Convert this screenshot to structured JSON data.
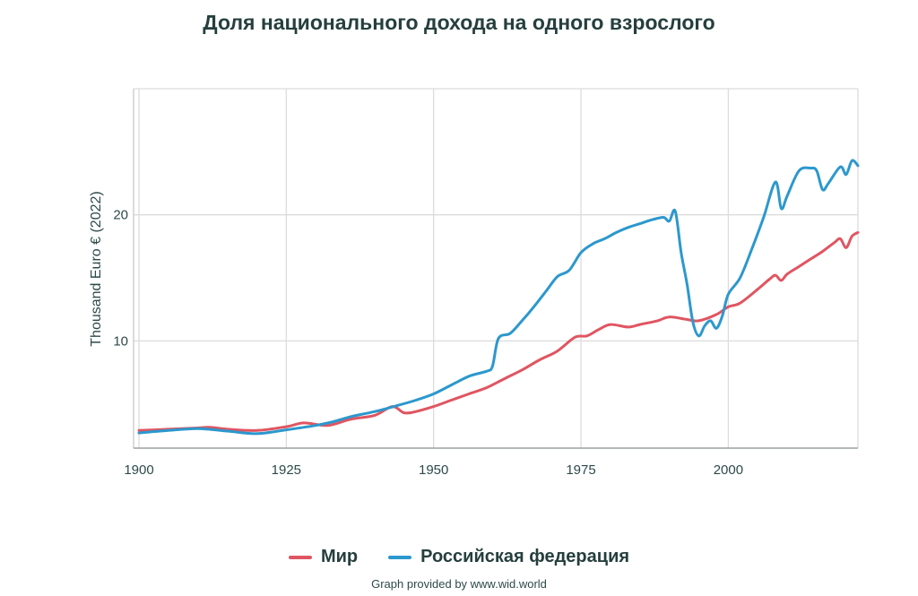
{
  "chart_data": {
    "type": "line",
    "title": "Доля национального дохода на одного взрослого",
    "ylabel": "Thousand Euro € (2022)",
    "xlabel": "",
    "xlim": [
      1900,
      2022
    ],
    "ylim": [
      1.5,
      30
    ],
    "x_ticks": [
      1900,
      1925,
      1950,
      1975,
      2000
    ],
    "y_ticks": [
      10,
      20
    ],
    "grid": true,
    "legend_placement": "bottom",
    "series": [
      {
        "name": "Мир",
        "color": "#e05561",
        "points": [
          [
            1900,
            2.9
          ],
          [
            1905,
            3.0
          ],
          [
            1910,
            3.1
          ],
          [
            1912,
            3.15
          ],
          [
            1915,
            3.0
          ],
          [
            1920,
            2.9
          ],
          [
            1925,
            3.2
          ],
          [
            1928,
            3.5
          ],
          [
            1932,
            3.3
          ],
          [
            1936,
            3.8
          ],
          [
            1940,
            4.1
          ],
          [
            1943,
            4.8
          ],
          [
            1945,
            4.3
          ],
          [
            1947,
            4.4
          ],
          [
            1950,
            4.8
          ],
          [
            1953,
            5.3
          ],
          [
            1956,
            5.8
          ],
          [
            1959,
            6.3
          ],
          [
            1962,
            7.0
          ],
          [
            1965,
            7.7
          ],
          [
            1968,
            8.5
          ],
          [
            1971,
            9.2
          ],
          [
            1974,
            10.3
          ],
          [
            1976,
            10.4
          ],
          [
            1978,
            10.9
          ],
          [
            1980,
            11.3
          ],
          [
            1983,
            11.1
          ],
          [
            1985,
            11.3
          ],
          [
            1988,
            11.6
          ],
          [
            1990,
            11.9
          ],
          [
            1993,
            11.7
          ],
          [
            1995,
            11.6
          ],
          [
            1998,
            12.1
          ],
          [
            2000,
            12.7
          ],
          [
            2002,
            13.0
          ],
          [
            2005,
            14.1
          ],
          [
            2007,
            14.9
          ],
          [
            2008,
            15.2
          ],
          [
            2009,
            14.8
          ],
          [
            2010,
            15.3
          ],
          [
            2012,
            15.9
          ],
          [
            2014,
            16.5
          ],
          [
            2016,
            17.1
          ],
          [
            2018,
            17.8
          ],
          [
            2019,
            18.1
          ],
          [
            2020,
            17.4
          ],
          [
            2021,
            18.3
          ],
          [
            2022,
            18.6
          ]
        ]
      },
      {
        "name": "Российская федерация",
        "color": "#2c98cd",
        "points": [
          [
            1900,
            2.7
          ],
          [
            1905,
            2.9
          ],
          [
            1910,
            3.05
          ],
          [
            1915,
            2.85
          ],
          [
            1920,
            2.65
          ],
          [
            1925,
            2.95
          ],
          [
            1930,
            3.3
          ],
          [
            1933,
            3.6
          ],
          [
            1936,
            4.0
          ],
          [
            1940,
            4.4
          ],
          [
            1944,
            4.9
          ],
          [
            1947,
            5.3
          ],
          [
            1950,
            5.8
          ],
          [
            1953,
            6.5
          ],
          [
            1956,
            7.2
          ],
          [
            1959,
            7.6
          ],
          [
            1960,
            8.0
          ],
          [
            1961,
            10.2
          ],
          [
            1963,
            10.6
          ],
          [
            1965,
            11.6
          ],
          [
            1967,
            12.7
          ],
          [
            1969,
            13.9
          ],
          [
            1971,
            15.1
          ],
          [
            1973,
            15.6
          ],
          [
            1975,
            17.0
          ],
          [
            1977,
            17.7
          ],
          [
            1979,
            18.1
          ],
          [
            1981,
            18.6
          ],
          [
            1983,
            19.0
          ],
          [
            1985,
            19.3
          ],
          [
            1987,
            19.6
          ],
          [
            1989,
            19.8
          ],
          [
            1990,
            19.5
          ],
          [
            1991,
            20.3
          ],
          [
            1992,
            17.0
          ],
          [
            1993,
            14.5
          ],
          [
            1994,
            11.5
          ],
          [
            1995,
            10.4
          ],
          [
            1996,
            11.2
          ],
          [
            1997,
            11.6
          ],
          [
            1998,
            11.0
          ],
          [
            1999,
            12.0
          ],
          [
            2000,
            13.7
          ],
          [
            2002,
            15.0
          ],
          [
            2004,
            17.3
          ],
          [
            2006,
            19.8
          ],
          [
            2008,
            22.6
          ],
          [
            2009,
            20.5
          ],
          [
            2010,
            21.5
          ],
          [
            2012,
            23.5
          ],
          [
            2014,
            23.7
          ],
          [
            2015,
            23.5
          ],
          [
            2016,
            22.0
          ],
          [
            2017,
            22.5
          ],
          [
            2019,
            23.8
          ],
          [
            2020,
            23.2
          ],
          [
            2021,
            24.3
          ],
          [
            2022,
            23.9
          ]
        ]
      }
    ]
  },
  "credit": "Graph provided by www.wid.world"
}
